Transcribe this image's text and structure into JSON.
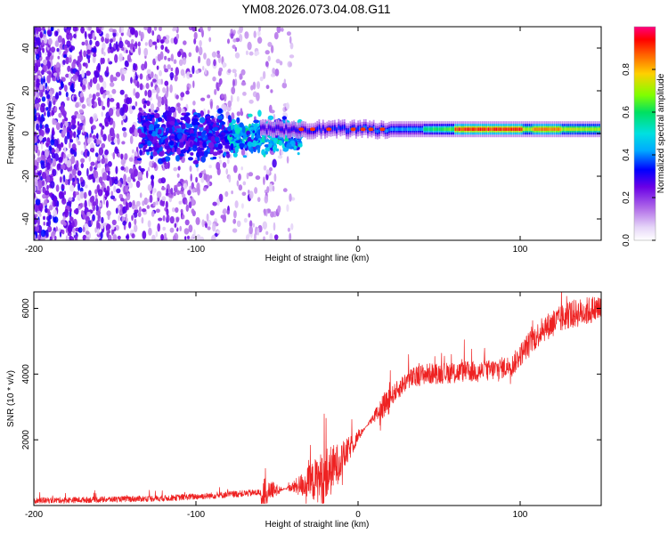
{
  "title": "YM08.2026.073.04.08.G11",
  "chart_data": [
    {
      "type": "heatmap",
      "name": "spectrogram",
      "title": "YM08.2026.073.04.08.G11",
      "xlabel": "Height of straight line (km)",
      "ylabel": "Frequency (Hz)",
      "xlim": [
        -200,
        150
      ],
      "ylim": [
        -50,
        50
      ],
      "x_ticks": [
        -200,
        -100,
        0,
        100
      ],
      "x_tick_labels": [
        "-200",
        "-100",
        "0",
        "100"
      ],
      "y_ticks": [
        -40,
        -20,
        0,
        20,
        40
      ],
      "y_tick_labels": [
        "-40",
        "-20",
        "0",
        "20",
        "40"
      ],
      "ridge": {
        "freq_hz": 2,
        "strong_from_km": -50,
        "peak_km": [
          85,
          110
        ]
      },
      "colorbar": {
        "label": "Normalized spectral amplitude",
        "range": [
          0,
          1
        ],
        "ticks": [
          0.0,
          0.2,
          0.4,
          0.6,
          0.8
        ],
        "tick_labels": [
          "0.0",
          "0.2",
          "0.4",
          "0.6",
          "0.8"
        ]
      }
    },
    {
      "type": "line",
      "name": "snr",
      "xlabel": "Height of straight line (km)",
      "ylabel": "SNR (10 * v/v)",
      "xlim": [
        -200,
        150
      ],
      "ylim": [
        0,
        6500
      ],
      "x_ticks": [
        -200,
        -100,
        0,
        100
      ],
      "x_tick_labels": [
        "-200",
        "-100",
        "0",
        "100"
      ],
      "y_ticks": [
        2000,
        4000,
        6000
      ],
      "y_tick_labels": [
        "2000",
        "4000",
        "6000"
      ],
      "color": "#ee2222",
      "trend": {
        "x": [
          -200,
          -160,
          -120,
          -90,
          -60,
          -40,
          -30,
          -20,
          -10,
          0,
          10,
          20,
          30,
          40,
          60,
          80,
          95,
          105,
          115,
          130,
          150
        ],
        "y": [
          150,
          180,
          220,
          300,
          400,
          550,
          700,
          900,
          1400,
          2100,
          2700,
          3300,
          3800,
          4000,
          4050,
          4100,
          4250,
          4900,
          5400,
          5800,
          6000
        ]
      }
    }
  ]
}
